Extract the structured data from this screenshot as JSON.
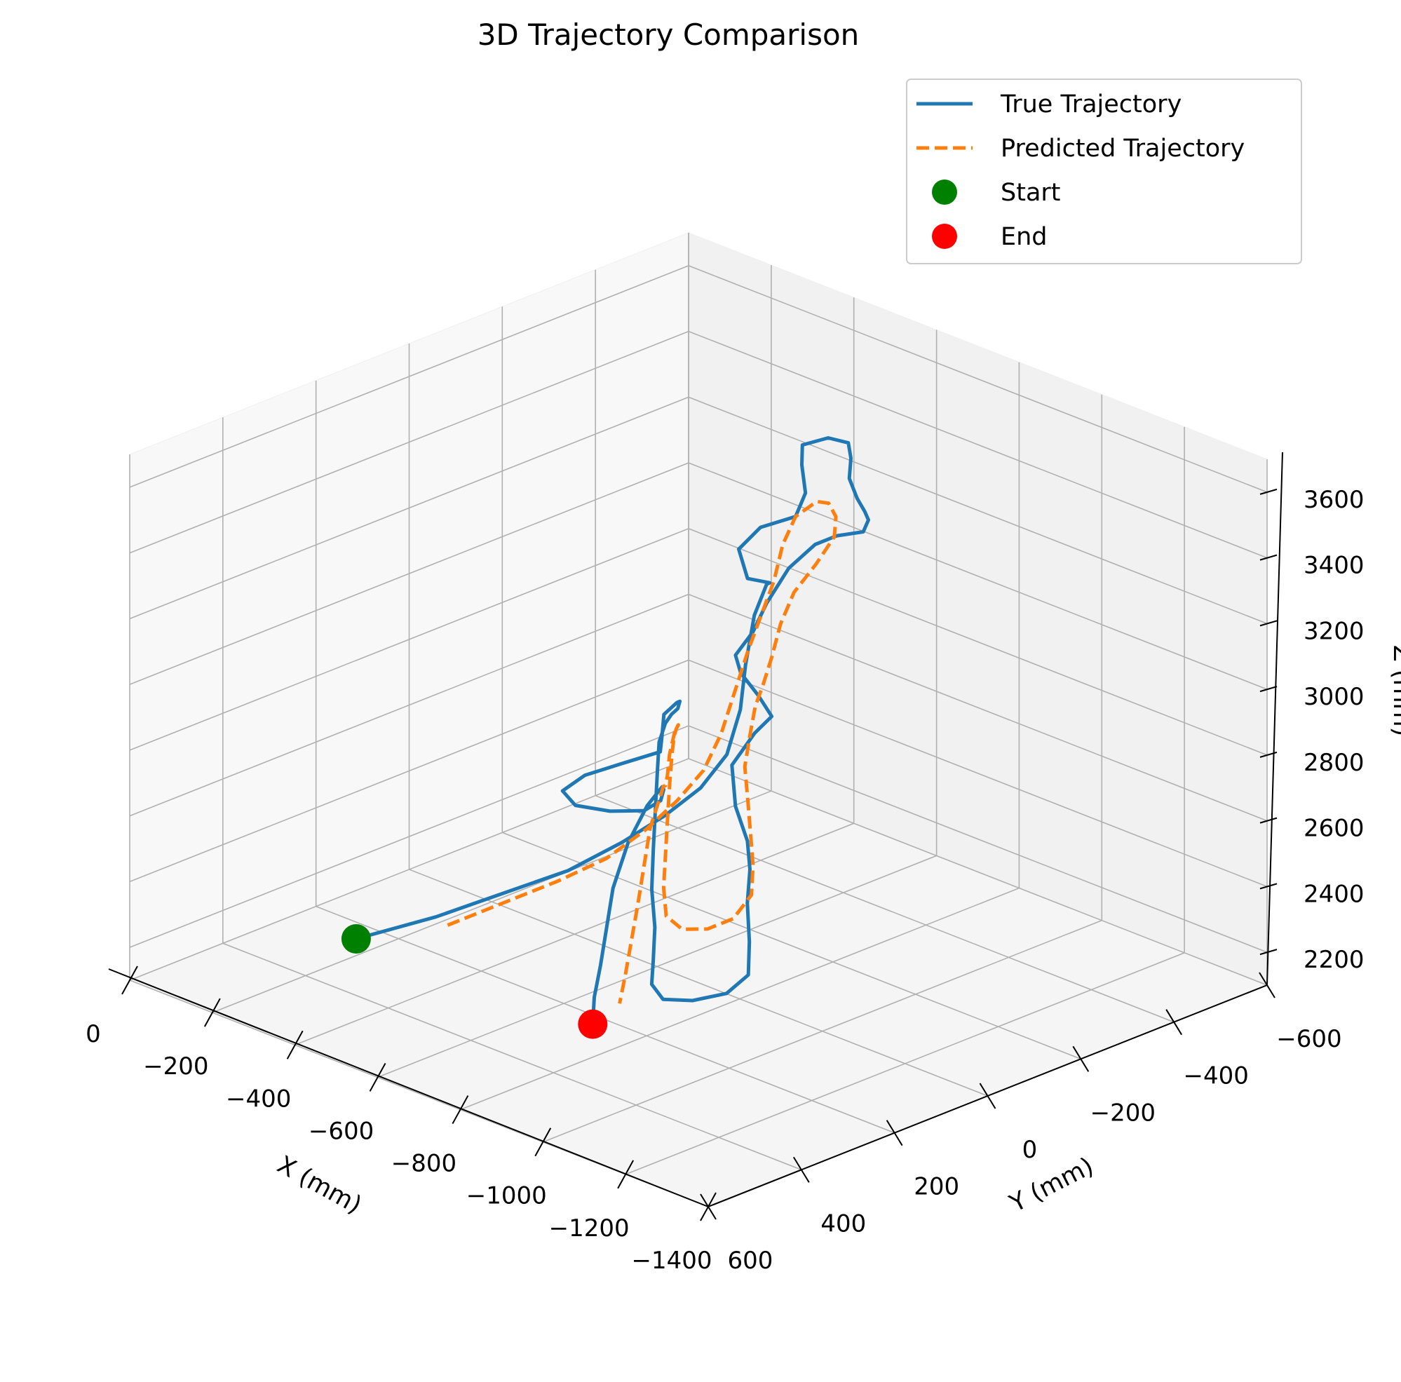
{
  "chart_data": {
    "type": "line",
    "projection": "3d",
    "title": "3D Trajectory Comparison",
    "xlabel": "X (mm)",
    "ylabel": "Y (mm)",
    "zlabel": "Z (mm)",
    "xlim": [
      0,
      -1400
    ],
    "ylim": [
      -600,
      600
    ],
    "zlim": [
      2100,
      3700
    ],
    "xticks": [
      0,
      -200,
      -400,
      -600,
      -800,
      -1000,
      -1200,
      -1400
    ],
    "yticks": [
      -600,
      -400,
      -200,
      0,
      200,
      400,
      600
    ],
    "zticks": [
      2200,
      2400,
      2600,
      2800,
      3000,
      3200,
      3400,
      3600
    ],
    "xtick_labels": [
      "0",
      "−200",
      "−400",
      "−600",
      "−800",
      "−1000",
      "−1200",
      "−1400"
    ],
    "ytick_labels": [
      "−600",
      "−400",
      "−200",
      "0",
      "200",
      "400",
      "600"
    ],
    "ztick_labels": [
      "2200",
      "2400",
      "2600",
      "2800",
      "3000",
      "3200",
      "3400",
      "3600"
    ],
    "grid": true,
    "legend_position": "top-right",
    "series": [
      {
        "name": "True Trajectory",
        "color": "#1f77b4",
        "style": "solid",
        "points": [
          [
            -300,
            380,
            2250
          ],
          [
            -380,
            280,
            2300
          ],
          [
            -450,
            200,
            2360
          ],
          [
            -520,
            120,
            2420
          ],
          [
            -570,
            50,
            2490
          ],
          [
            -620,
            0,
            2570
          ],
          [
            -660,
            -40,
            2650
          ],
          [
            -690,
            -70,
            2750
          ],
          [
            -700,
            -90,
            2880
          ],
          [
            -690,
            -110,
            3000
          ],
          [
            -700,
            -120,
            3150
          ],
          [
            -730,
            -120,
            3260
          ],
          [
            -760,
            -100,
            3290
          ],
          [
            -740,
            -70,
            3310
          ],
          [
            -730,
            -60,
            3400
          ],
          [
            -760,
            -80,
            3470
          ],
          [
            -800,
            -120,
            3500
          ],
          [
            -790,
            -150,
            3550
          ],
          [
            -770,
            -160,
            3620
          ],
          [
            -760,
            -170,
            3670
          ],
          [
            -800,
            -190,
            3700
          ],
          [
            -860,
            -180,
            3720
          ],
          [
            -900,
            -150,
            3710
          ],
          [
            -930,
            -120,
            3680
          ],
          [
            -960,
            -110,
            3640
          ],
          [
            -990,
            -100,
            3620
          ],
          [
            -1010,
            -90,
            3610
          ],
          [
            -1020,
            -70,
            3590
          ],
          [
            -990,
            -40,
            3580
          ],
          [
            -960,
            -20,
            3550
          ],
          [
            -930,
            10,
            3480
          ],
          [
            -910,
            40,
            3380
          ],
          [
            -900,
            60,
            3300
          ],
          [
            -880,
            80,
            3230
          ],
          [
            -870,
            60,
            3160
          ],
          [
            -890,
            40,
            3090
          ],
          [
            -900,
            20,
            3020
          ],
          [
            -870,
            30,
            2960
          ],
          [
            -860,
            70,
            2880
          ],
          [
            -880,
            80,
            2770
          ],
          [
            -920,
            90,
            2690
          ],
          [
            -960,
            120,
            2640
          ],
          [
            -1010,
            170,
            2590
          ],
          [
            -1060,
            210,
            2520
          ],
          [
            -1080,
            230,
            2440
          ],
          [
            -1050,
            250,
            2380
          ],
          [
            -990,
            270,
            2340
          ],
          [
            -930,
            280,
            2320
          ],
          [
            -880,
            260,
            2330
          ],
          [
            -850,
            230,
            2370
          ],
          [
            -820,
            200,
            2440
          ],
          [
            -790,
            180,
            2530
          ],
          [
            -760,
            150,
            2620
          ],
          [
            -720,
            110,
            2700
          ],
          [
            -680,
            70,
            2780
          ],
          [
            -650,
            40,
            2830
          ],
          [
            -620,
            0,
            2850
          ],
          [
            -590,
            -40,
            2840
          ],
          [
            -560,
            -80,
            2820
          ],
          [
            -520,
            -120,
            2800
          ],
          [
            -490,
            -140,
            2770
          ],
          [
            -470,
            -130,
            2730
          ],
          [
            -510,
            -90,
            2700
          ],
          [
            -540,
            -60,
            2690
          ],
          [
            -510,
            -10,
            2670
          ],
          [
            -470,
            40,
            2640
          ],
          [
            -450,
            70,
            2600
          ],
          [
            -470,
            60,
            2560
          ],
          [
            -520,
            30,
            2550
          ],
          [
            -580,
            10,
            2570
          ],
          [
            -620,
            10,
            2620
          ],
          [
            -650,
            30,
            2680
          ],
          [
            -680,
            60,
            2720
          ],
          [
            -700,
            110,
            2700
          ],
          [
            -710,
            160,
            2620
          ],
          [
            -730,
            210,
            2520
          ],
          [
            -760,
            250,
            2440
          ],
          [
            -790,
            290,
            2360
          ],
          [
            -820,
            330,
            2300
          ],
          [
            -850,
            360,
            2250
          ]
        ]
      },
      {
        "name": "Predicted Trajectory",
        "color": "#ff7f0e",
        "style": "dashed",
        "points": [
          [
            -420,
            290,
            2300
          ],
          [
            -480,
            230,
            2360
          ],
          [
            -540,
            160,
            2420
          ],
          [
            -590,
            100,
            2480
          ],
          [
            -630,
            50,
            2560
          ],
          [
            -660,
            10,
            2640
          ],
          [
            -690,
            -20,
            2730
          ],
          [
            -710,
            -40,
            2840
          ],
          [
            -720,
            -60,
            2960
          ],
          [
            -730,
            -80,
            3080
          ],
          [
            -750,
            -90,
            3190
          ],
          [
            -770,
            -100,
            3300
          ],
          [
            -780,
            -110,
            3410
          ],
          [
            -800,
            -120,
            3500
          ],
          [
            -840,
            -130,
            3560
          ],
          [
            -880,
            -120,
            3580
          ],
          [
            -920,
            -100,
            3570
          ],
          [
            -950,
            -70,
            3540
          ],
          [
            -940,
            -40,
            3470
          ],
          [
            -920,
            -10,
            3390
          ],
          [
            -910,
            10,
            3300
          ],
          [
            -900,
            20,
            3200
          ],
          [
            -880,
            20,
            3110
          ],
          [
            -860,
            20,
            3030
          ],
          [
            -870,
            40,
            2960
          ],
          [
            -880,
            60,
            2880
          ],
          [
            -910,
            80,
            2800
          ],
          [
            -950,
            110,
            2740
          ],
          [
            -990,
            140,
            2680
          ],
          [
            -1020,
            170,
            2620
          ],
          [
            -1010,
            200,
            2560
          ],
          [
            -970,
            220,
            2520
          ],
          [
            -920,
            230,
            2500
          ],
          [
            -870,
            220,
            2510
          ],
          [
            -830,
            190,
            2560
          ],
          [
            -790,
            150,
            2630
          ],
          [
            -750,
            110,
            2700
          ],
          [
            -710,
            70,
            2760
          ],
          [
            -670,
            30,
            2800
          ],
          [
            -630,
            -10,
            2810
          ],
          [
            -590,
            -50,
            2790
          ],
          [
            -550,
            -90,
            2760
          ],
          [
            -520,
            -110,
            2720
          ],
          [
            -540,
            -80,
            2670
          ],
          [
            -580,
            -40,
            2650
          ],
          [
            -620,
            0,
            2660
          ],
          [
            -660,
            40,
            2700
          ],
          [
            -700,
            80,
            2720
          ],
          [
            -730,
            130,
            2660
          ],
          [
            -760,
            170,
            2580
          ],
          [
            -790,
            210,
            2500
          ],
          [
            -820,
            250,
            2430
          ],
          [
            -850,
            290,
            2360
          ],
          [
            -870,
            320,
            2300
          ]
        ]
      }
    ],
    "markers": [
      {
        "name": "Start",
        "color": "#008000",
        "point": [
          -300,
          380,
          2250
        ]
      },
      {
        "name": "End",
        "color": "#ff0000",
        "point": [
          -850,
          360,
          2250
        ]
      }
    ]
  }
}
